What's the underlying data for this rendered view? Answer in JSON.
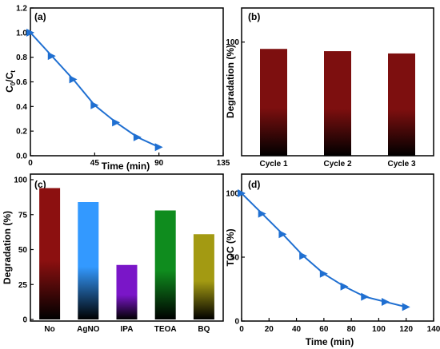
{
  "chart_data": [
    {
      "type": "line",
      "panel_label": "(a)",
      "xlabel": "Time (min)",
      "ylabel": "C0/Ct",
      "ylabel_main": "C",
      "ylabel_sub0": "0",
      "ylabel_slash": "/C",
      "ylabel_subt": "t",
      "xlim": [
        0,
        135
      ],
      "ylim": [
        0,
        1.2
      ],
      "x_ticks": [
        "0",
        "45",
        "90",
        "135"
      ],
      "y_ticks": [
        "0.0",
        "0.2",
        "0.4",
        "0.6",
        "0.8",
        "1.0",
        "1.2"
      ],
      "x": [
        0,
        15,
        30,
        45,
        60,
        75,
        90
      ],
      "y": [
        1.0,
        0.81,
        0.62,
        0.41,
        0.27,
        0.15,
        0.07
      ],
      "color": "#1f6fd1",
      "marker": "right-triangle"
    },
    {
      "type": "bar",
      "panel_label": "(b)",
      "xlabel": "",
      "ylabel": "Degradation (%)",
      "ylim": [
        0,
        130
      ],
      "y_ticks": [
        "100"
      ],
      "categories": [
        "Cycle 1",
        "Cycle 2",
        "Cycle 3"
      ],
      "values": [
        94,
        92,
        90
      ],
      "gradient": [
        "#7d0f0f",
        "#000000"
      ]
    },
    {
      "type": "bar",
      "panel_label": "(c)",
      "xlabel": "",
      "ylabel": "Degradation (%)",
      "ylim": [
        0,
        100
      ],
      "y_ticks": [
        "0",
        "25",
        "50",
        "75",
        "100"
      ],
      "categories": [
        "No",
        "AgNO",
        "IPA",
        "TEOA",
        "BQ"
      ],
      "values": [
        94,
        84,
        39,
        78,
        61
      ],
      "gradients": [
        [
          "#8c1010",
          "#000000"
        ],
        [
          "#3399ff",
          "#000000"
        ],
        [
          "#7a16c8",
          "#000000"
        ],
        [
          "#0f8c1e",
          "#000000"
        ],
        [
          "#a39a12",
          "#000000"
        ]
      ]
    },
    {
      "type": "line",
      "panel_label": "(d)",
      "xlabel": "Time (min)",
      "ylabel": "TOC (%)",
      "xlim": [
        0,
        140
      ],
      "ylim": [
        0,
        115
      ],
      "x_ticks": [
        "0",
        "20",
        "40",
        "60",
        "80",
        "100",
        "120",
        "140"
      ],
      "y_ticks": [
        "0",
        "50",
        "100"
      ],
      "x": [
        0,
        15,
        30,
        45,
        60,
        75,
        90,
        105,
        120
      ],
      "y": [
        100,
        84,
        68,
        51,
        37,
        27,
        19,
        15,
        11
      ],
      "color": "#1f6fd1",
      "marker": "right-triangle"
    }
  ]
}
